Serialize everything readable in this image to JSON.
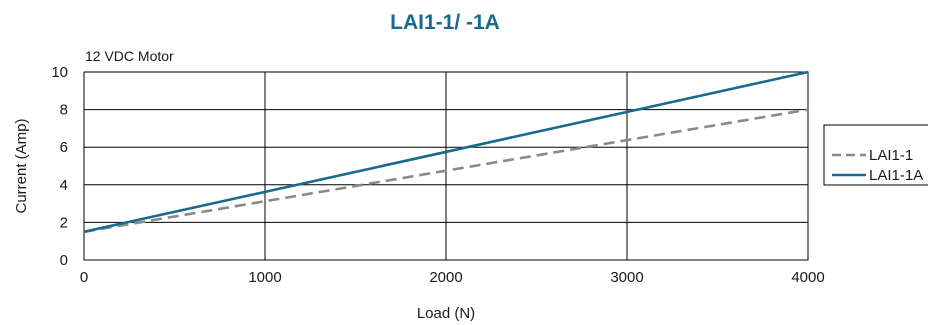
{
  "chart_data": {
    "type": "line",
    "title": "LAI1-1/ -1A",
    "subtitle": "12 VDC Motor",
    "xlabel": "Load (N)",
    "ylabel": "Current (Amp)",
    "xlim": [
      0,
      4000
    ],
    "ylim": [
      0,
      10
    ],
    "x_ticks": [
      0,
      1000,
      2000,
      3000,
      4000
    ],
    "y_ticks": [
      0,
      2,
      4,
      6,
      8,
      10
    ],
    "grid": true,
    "legend_position": "right",
    "series": [
      {
        "name": "LAI1-1",
        "x": [
          0,
          4000
        ],
        "y": [
          1.5,
          8.0
        ],
        "color": "#8a8a8a",
        "style": "dashed"
      },
      {
        "name": "LAI1-1A",
        "x": [
          0,
          4000
        ],
        "y": [
          1.5,
          10.0
        ],
        "color": "#1a6a8f",
        "style": "solid"
      }
    ]
  }
}
